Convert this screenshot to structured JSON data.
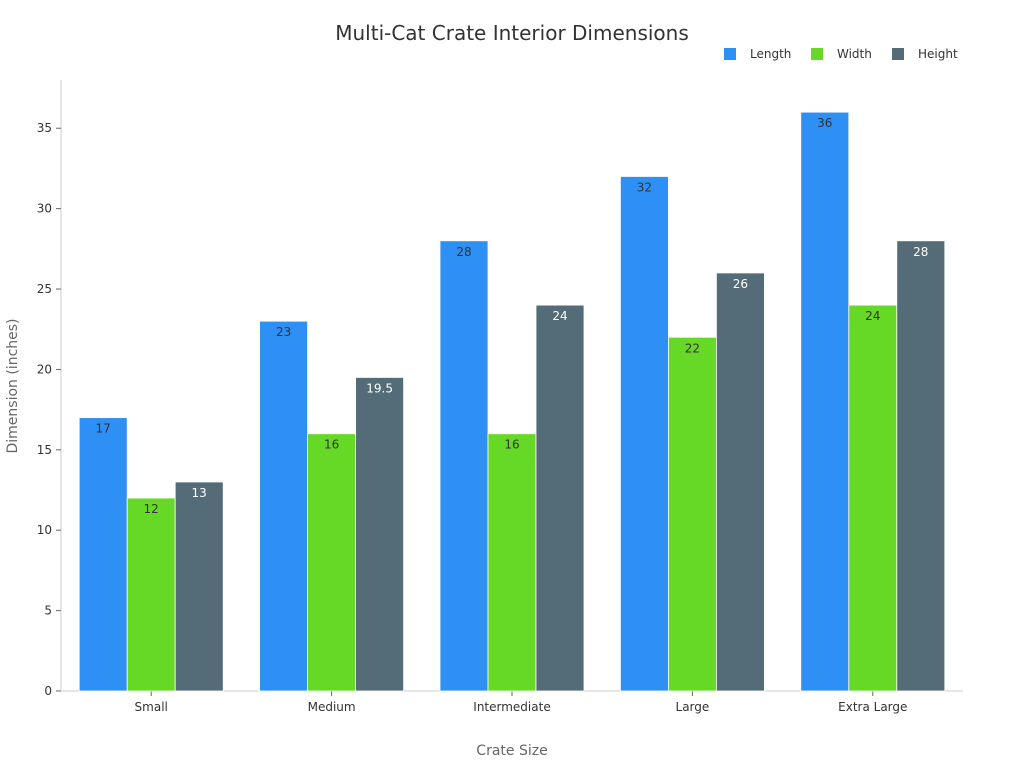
{
  "chart_data": {
    "type": "bar",
    "title": "Multi-Cat Crate Interior Dimensions",
    "xlabel": "Crate Size",
    "ylabel": "Dimension (inches)",
    "categories": [
      "Small",
      "Medium",
      "Intermediate",
      "Large",
      "Extra Large"
    ],
    "series": [
      {
        "name": "Length",
        "color": "#2E8FF5",
        "label_color": "#333333",
        "values": [
          17,
          23,
          28,
          32,
          36
        ]
      },
      {
        "name": "Width",
        "color": "#66D926",
        "label_color": "#333333",
        "values": [
          12,
          16,
          16,
          22,
          24
        ]
      },
      {
        "name": "Height",
        "color": "#546C77",
        "label_color": "#FFFFFF",
        "values": [
          13,
          19.5,
          24,
          26,
          28
        ]
      }
    ],
    "ylim": [
      0,
      38
    ],
    "yticks": [
      0,
      5,
      10,
      15,
      20,
      25,
      30,
      35
    ],
    "grid": false,
    "legend_position": "top-right"
  }
}
